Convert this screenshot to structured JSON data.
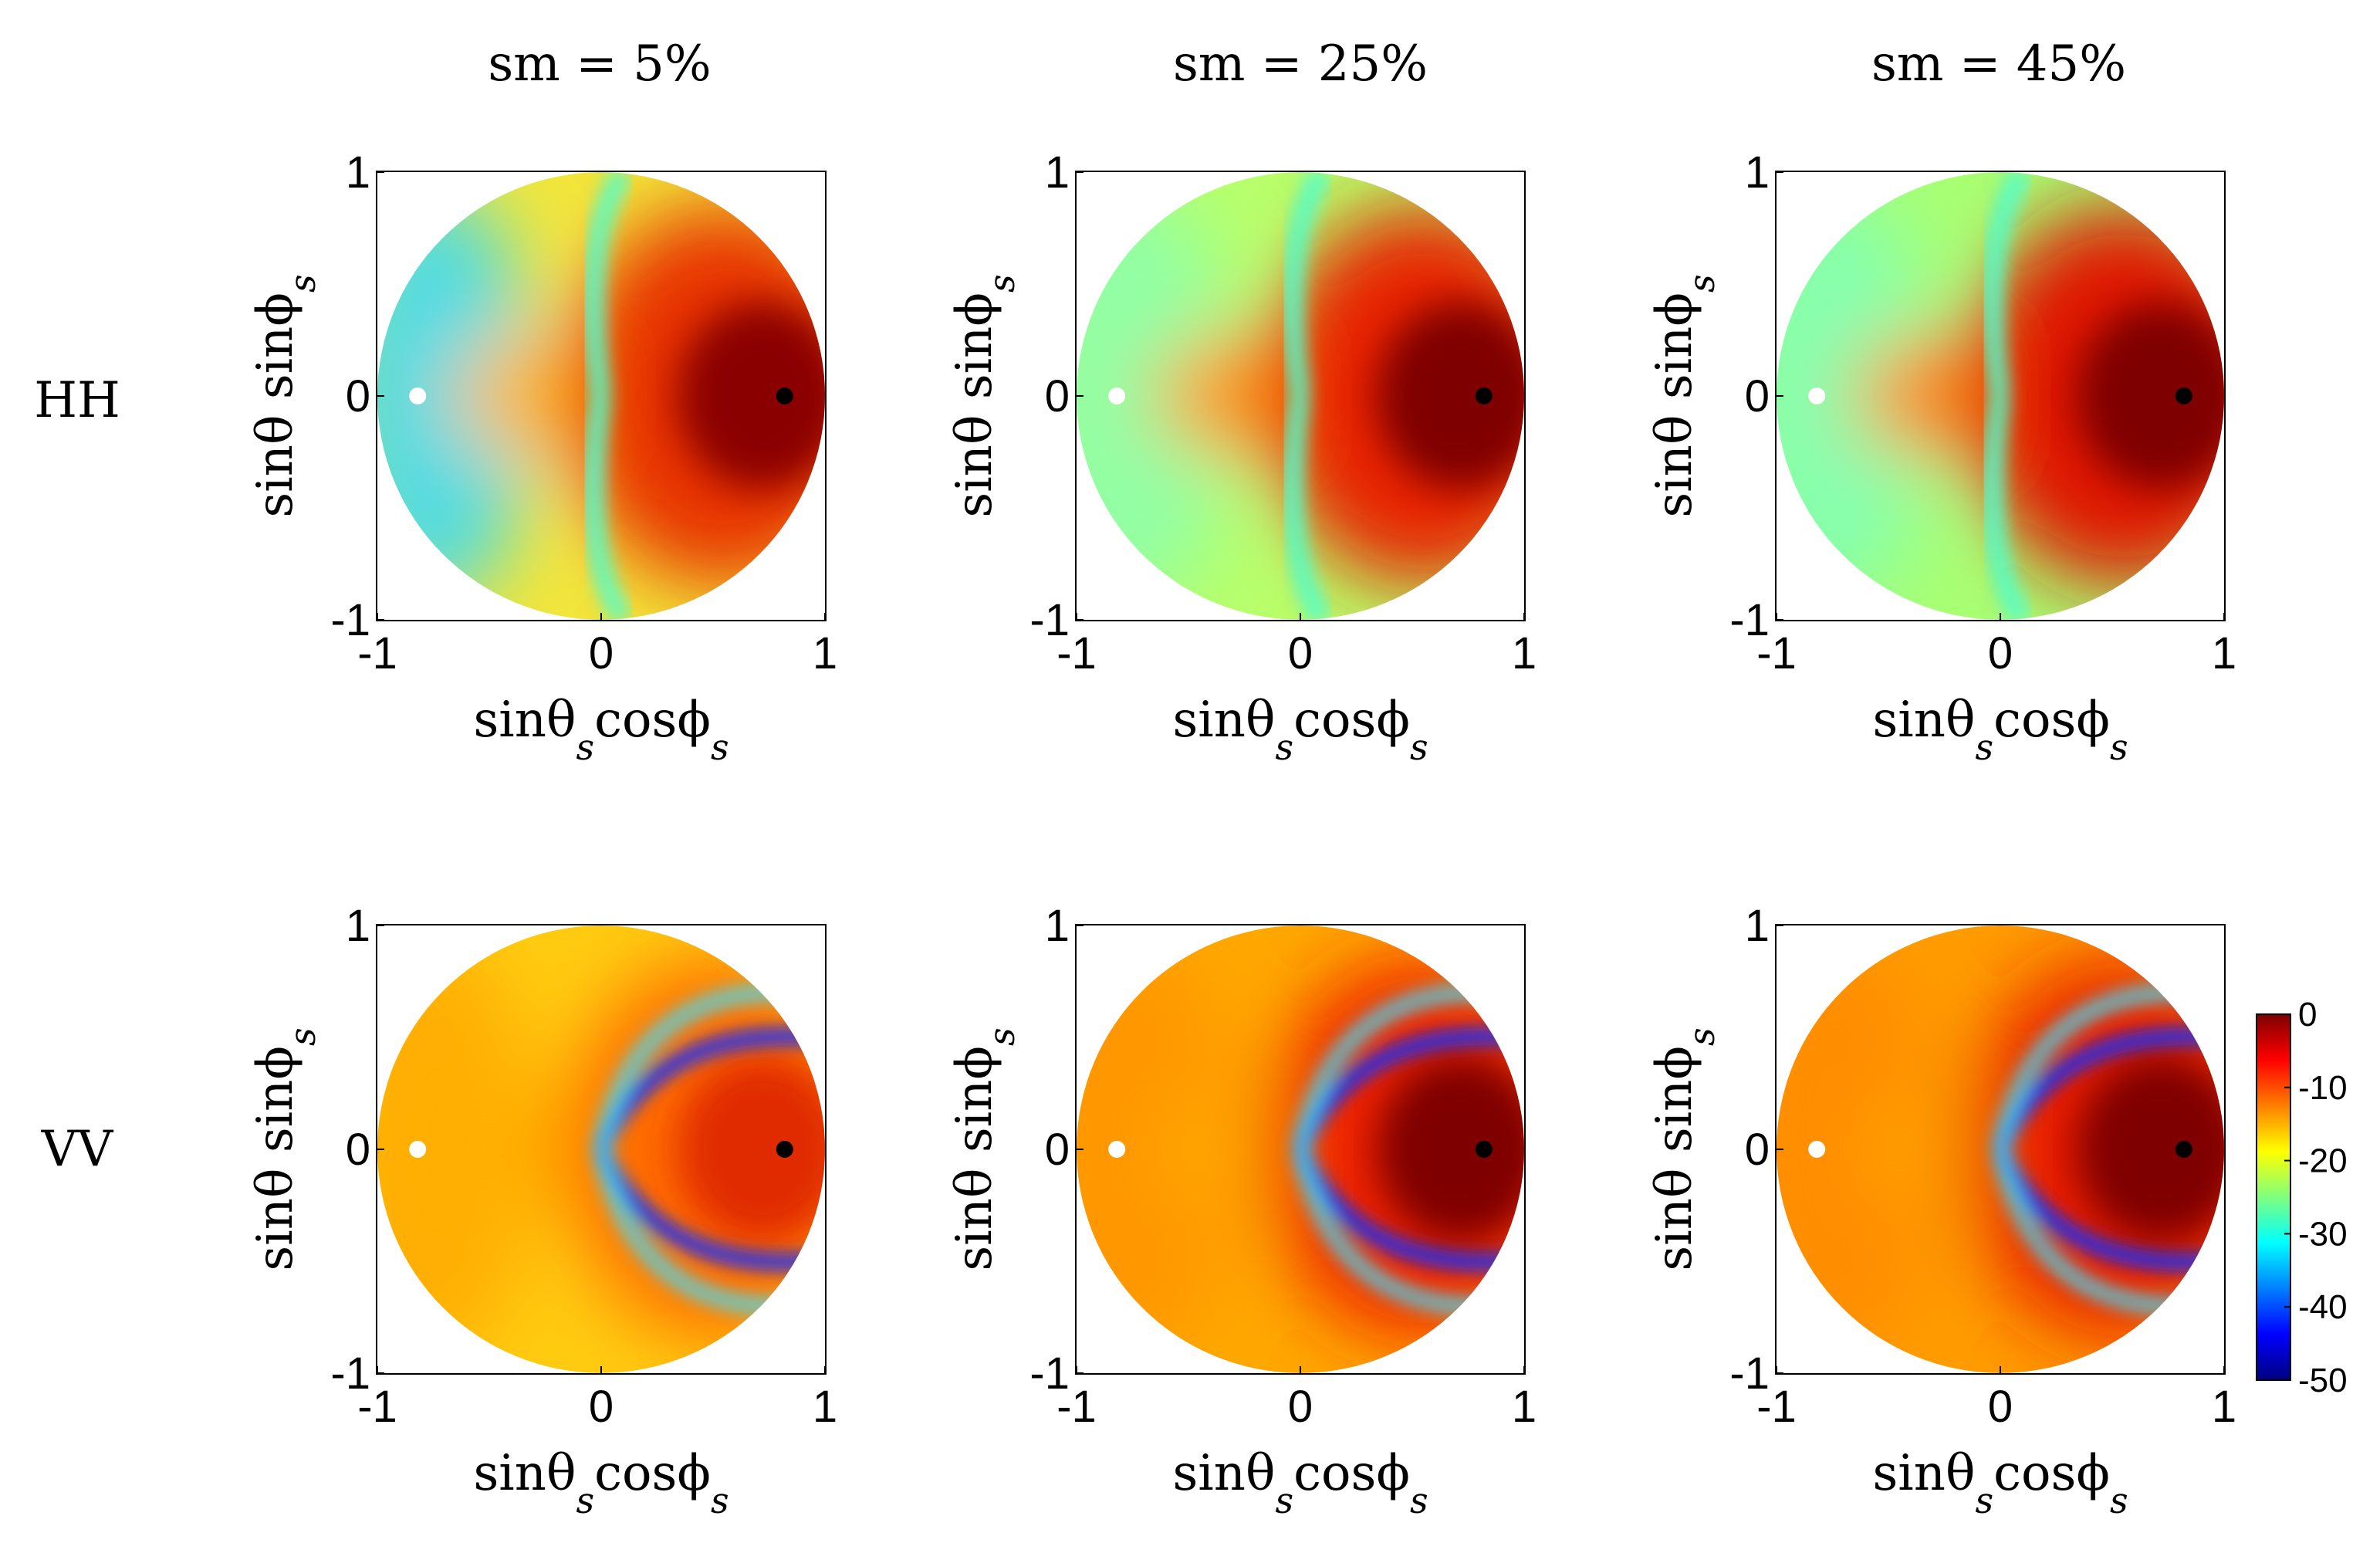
{
  "figure": {
    "columns": [
      {
        "title": "sm = 5%"
      },
      {
        "title": "sm = 25%"
      },
      {
        "title": "sm = 45%"
      }
    ],
    "rows": [
      {
        "label": "HH"
      },
      {
        "label": "VV"
      }
    ],
    "xlabel_main": "sinθ cosϕ",
    "xlabel_parts": [
      "sinθ",
      "cosϕ"
    ],
    "ylabel_parts": [
      "sinθ",
      "sinϕ"
    ],
    "subscript": "s"
  },
  "chart_data": [
    {
      "type": "heatmap",
      "row": "HH",
      "title": "sm = 5%",
      "xlim": [
        -1,
        1
      ],
      "ylim": [
        -1,
        1
      ],
      "xticks": [
        "-1",
        "0",
        "1"
      ],
      "yticks": [
        "-1",
        "0",
        "1"
      ],
      "markers": [
        {
          "x": -0.82,
          "y": 0,
          "color": "#ffffff"
        },
        {
          "x": 0.82,
          "y": 0,
          "color": "#000000"
        }
      ],
      "max_at": [
        0.82,
        0
      ],
      "peak_db": 0
    },
    {
      "type": "heatmap",
      "row": "HH",
      "title": "sm = 25%",
      "xlim": [
        -1,
        1
      ],
      "ylim": [
        -1,
        1
      ],
      "xticks": [
        "-1",
        "0",
        "1"
      ],
      "yticks": [
        "-1",
        "0",
        "1"
      ],
      "markers": [
        {
          "x": -0.82,
          "y": 0,
          "color": "#ffffff"
        },
        {
          "x": 0.82,
          "y": 0,
          "color": "#000000"
        }
      ],
      "max_at": [
        0.82,
        0
      ],
      "peak_db": 0
    },
    {
      "type": "heatmap",
      "row": "HH",
      "title": "sm = 45%",
      "xlim": [
        -1,
        1
      ],
      "ylim": [
        -1,
        1
      ],
      "xticks": [
        "-1",
        "0",
        "1"
      ],
      "yticks": [
        "-1",
        "0",
        "1"
      ],
      "markers": [
        {
          "x": -0.82,
          "y": 0,
          "color": "#ffffff"
        },
        {
          "x": 0.82,
          "y": 0,
          "color": "#000000"
        }
      ],
      "max_at": [
        0.82,
        0
      ],
      "peak_db": 0
    },
    {
      "type": "heatmap",
      "row": "VV",
      "title": "sm = 5%",
      "xlim": [
        -1,
        1
      ],
      "ylim": [
        -1,
        1
      ],
      "xticks": [
        "-1",
        "0",
        "1"
      ],
      "yticks": [
        "-1",
        "0",
        "1"
      ],
      "markers": [
        {
          "x": -0.82,
          "y": 0,
          "color": "#ffffff"
        },
        {
          "x": 0.82,
          "y": 0,
          "color": "#000000"
        }
      ],
      "max_at": [
        0.82,
        0
      ],
      "peak_db": -5
    },
    {
      "type": "heatmap",
      "row": "VV",
      "title": "sm = 25%",
      "xlim": [
        -1,
        1
      ],
      "ylim": [
        -1,
        1
      ],
      "xticks": [
        "-1",
        "0",
        "1"
      ],
      "yticks": [
        "-1",
        "0",
        "1"
      ],
      "markers": [
        {
          "x": -0.82,
          "y": 0,
          "color": "#ffffff"
        },
        {
          "x": 0.82,
          "y": 0,
          "color": "#000000"
        }
      ],
      "max_at": [
        0.82,
        0
      ],
      "peak_db": -1
    },
    {
      "type": "heatmap",
      "row": "VV",
      "title": "sm = 45%",
      "xlim": [
        -1,
        1
      ],
      "ylim": [
        -1,
        1
      ],
      "xticks": [
        "-1",
        "0",
        "1"
      ],
      "yticks": [
        "-1",
        "0",
        "1"
      ],
      "markers": [
        {
          "x": -0.82,
          "y": 0,
          "color": "#ffffff"
        },
        {
          "x": 0.82,
          "y": 0,
          "color": "#000000"
        }
      ],
      "max_at": [
        0.82,
        0
      ],
      "peak_db": 0
    }
  ],
  "colorbar": {
    "range": [
      -50,
      0
    ],
    "ticks": [
      "0",
      "-10",
      "-20",
      "-30",
      "-40",
      "-50"
    ],
    "colormap": "jet",
    "colors": [
      "#00007f",
      "#0000ff",
      "#007fff",
      "#00ffff",
      "#7fff7f",
      "#ffff00",
      "#ff7f00",
      "#ff0000",
      "#7f0000"
    ]
  }
}
